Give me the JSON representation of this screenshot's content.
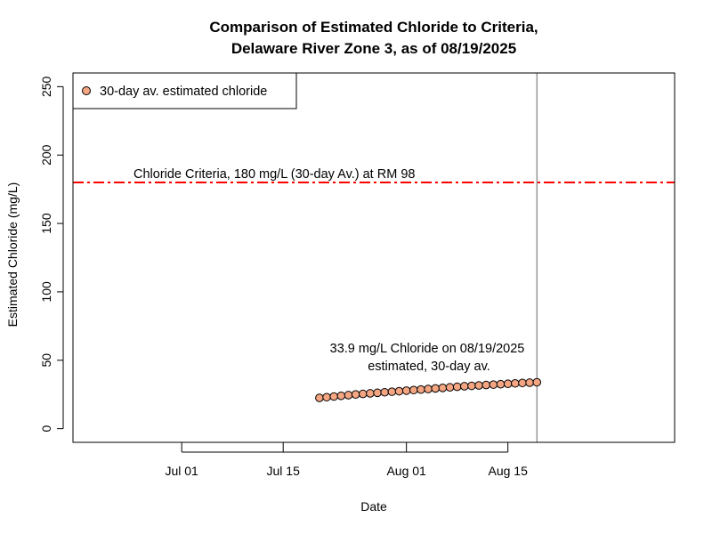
{
  "chart_data": {
    "type": "scatter",
    "title_line1": "Comparison of Estimated Chloride to Criteria,",
    "title_line2": "Delaware River Zone 3, as of 08/19/2025",
    "xlabel": "Date",
    "ylabel": "Estimated Chloride (mg/L)",
    "xlim": [
      "2025-06-16",
      "2025-09-07"
    ],
    "ylim": [
      -10,
      260
    ],
    "y_ticks": [
      0,
      50,
      100,
      150,
      200,
      250
    ],
    "y_tick_labels": [
      "0",
      "50",
      "100",
      "150",
      "200",
      "250"
    ],
    "x_ticks": [
      {
        "date": "2025-07-01",
        "label": "Jul 01"
      },
      {
        "date": "2025-07-15",
        "label": "Jul 15"
      },
      {
        "date": "2025-08-01",
        "label": "Aug 01"
      },
      {
        "date": "2025-08-15",
        "label": "Aug 15"
      }
    ],
    "grid": false,
    "legend": {
      "position": "top-left",
      "label": "30-day av. estimated chloride"
    },
    "criteria": {
      "value": 180,
      "label": "Chloride Criteria, 180 mg/L (30-day Av.) at RM 98",
      "color": "#ff0000"
    },
    "current_date": "2025-08-19",
    "annotation_line1": "33.9 mg/L Chloride on 08/19/2025",
    "annotation_line2": "estimated, 30-day av.",
    "point_color": "#f4a582",
    "series": [
      {
        "name": "30-day av. estimated chloride",
        "x": [
          "2025-07-20",
          "2025-07-21",
          "2025-07-22",
          "2025-07-23",
          "2025-07-24",
          "2025-07-25",
          "2025-07-26",
          "2025-07-27",
          "2025-07-28",
          "2025-07-29",
          "2025-07-30",
          "2025-07-31",
          "2025-08-01",
          "2025-08-02",
          "2025-08-03",
          "2025-08-04",
          "2025-08-05",
          "2025-08-06",
          "2025-08-07",
          "2025-08-08",
          "2025-08-09",
          "2025-08-10",
          "2025-08-11",
          "2025-08-12",
          "2025-08-13",
          "2025-08-14",
          "2025-08-15",
          "2025-08-16",
          "2025-08-17",
          "2025-08-18",
          "2025-08-19"
        ],
        "y": [
          22.5,
          23.0,
          23.5,
          24.0,
          24.5,
          25.0,
          25.4,
          25.8,
          26.2,
          26.6,
          27.0,
          27.4,
          27.8,
          28.2,
          28.6,
          29.0,
          29.4,
          29.8,
          30.2,
          30.6,
          31.0,
          31.3,
          31.6,
          31.9,
          32.2,
          32.5,
          32.8,
          33.1,
          33.4,
          33.6,
          33.9
        ]
      }
    ]
  }
}
